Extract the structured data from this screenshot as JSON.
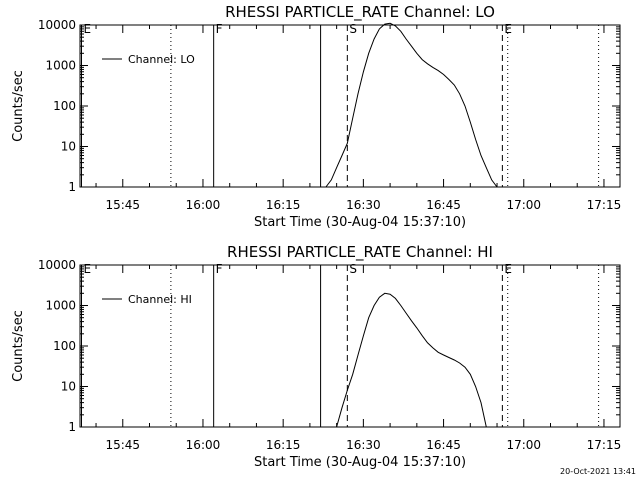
{
  "timestamp": "20-Oct-2021 13:41",
  "chart_data": [
    {
      "type": "line",
      "title": "RHESSI PARTICLE_RATE Channel: LO",
      "xlabel": "Start Time (30-Aug-04 15:37:10)",
      "ylabel": "Counts/sec",
      "y_scale": "log",
      "ylim": [
        1,
        10000
      ],
      "xlim": [
        "15:37",
        "17:18"
      ],
      "x_ticks": [
        "15:45",
        "16:00",
        "16:15",
        "16:30",
        "16:45",
        "17:00",
        "17:15"
      ],
      "y_ticks": [
        "1",
        "10",
        "100",
        "1000",
        "10000"
      ],
      "legend": {
        "placement": "top-left",
        "label": "Channel: LO"
      },
      "markers": [
        {
          "label": "E",
          "time": "15:37",
          "style": "solid"
        },
        {
          "label": "",
          "time": "15:54",
          "style": "dotted"
        },
        {
          "label": "F",
          "time": "16:02",
          "style": "solid"
        },
        {
          "label": "",
          "time": "16:22",
          "style": "solid"
        },
        {
          "label": "S",
          "time": "16:27",
          "style": "dashed"
        },
        {
          "label": "E",
          "time": "16:56",
          "style": "dashed"
        },
        {
          "label": "",
          "time": "16:57",
          "style": "dotted"
        },
        {
          "label": "",
          "time": "17:14",
          "style": "dotted"
        }
      ],
      "series": [
        {
          "name": "Channel: LO",
          "x": [
            "16:23",
            "16:24",
            "16:25",
            "16:26",
            "16:27",
            "16:28",
            "16:29",
            "16:30",
            "16:31",
            "16:32",
            "16:33",
            "16:34",
            "16:35",
            "16:36",
            "16:37",
            "16:38",
            "16:39",
            "16:40",
            "16:41",
            "16:42",
            "16:43",
            "16:44",
            "16:45",
            "16:46",
            "16:47",
            "16:48",
            "16:49",
            "16:50",
            "16:51",
            "16:52",
            "16:53",
            "16:54",
            "16:55"
          ],
          "y": [
            1,
            1.5,
            3,
            6,
            12,
            50,
            200,
            700,
            2000,
            4500,
            8000,
            10500,
            11000,
            9500,
            7000,
            4500,
            3000,
            2000,
            1400,
            1100,
            900,
            750,
            600,
            450,
            330,
            200,
            100,
            40,
            15,
            6,
            3,
            1.5,
            1
          ]
        }
      ]
    },
    {
      "type": "line",
      "title": "RHESSI PARTICLE_RATE Channel: HI",
      "xlabel": "Start Time (30-Aug-04 15:37:10)",
      "ylabel": "Counts/sec",
      "y_scale": "log",
      "ylim": [
        1,
        10000
      ],
      "xlim": [
        "15:37",
        "17:18"
      ],
      "x_ticks": [
        "15:45",
        "16:00",
        "16:15",
        "16:30",
        "16:45",
        "17:00",
        "17:15"
      ],
      "y_ticks": [
        "1",
        "10",
        "100",
        "1000",
        "10000"
      ],
      "legend": {
        "placement": "top-left",
        "label": "Channel: HI"
      },
      "markers": [
        {
          "label": "E",
          "time": "15:37",
          "style": "solid"
        },
        {
          "label": "",
          "time": "15:54",
          "style": "dotted"
        },
        {
          "label": "F",
          "time": "16:02",
          "style": "solid"
        },
        {
          "label": "",
          "time": "16:22",
          "style": "solid"
        },
        {
          "label": "S",
          "time": "16:27",
          "style": "dashed"
        },
        {
          "label": "E",
          "time": "16:56",
          "style": "dashed"
        },
        {
          "label": "",
          "time": "16:57",
          "style": "dotted"
        },
        {
          "label": "",
          "time": "17:14",
          "style": "dotted"
        }
      ],
      "series": [
        {
          "name": "Channel: HI",
          "x": [
            "16:25",
            "16:26",
            "16:27",
            "16:28",
            "16:29",
            "16:30",
            "16:31",
            "16:32",
            "16:33",
            "16:34",
            "16:35",
            "16:36",
            "16:37",
            "16:38",
            "16:39",
            "16:40",
            "16:41",
            "16:42",
            "16:43",
            "16:44",
            "16:45",
            "16:46",
            "16:47",
            "16:48",
            "16:49",
            "16:50",
            "16:51",
            "16:52",
            "16:53"
          ],
          "y": [
            1,
            3,
            8,
            20,
            60,
            180,
            500,
            1000,
            1600,
            2000,
            1900,
            1500,
            1000,
            650,
            420,
            280,
            180,
            120,
            90,
            70,
            60,
            52,
            45,
            38,
            30,
            20,
            10,
            4,
            1
          ]
        }
      ]
    }
  ]
}
